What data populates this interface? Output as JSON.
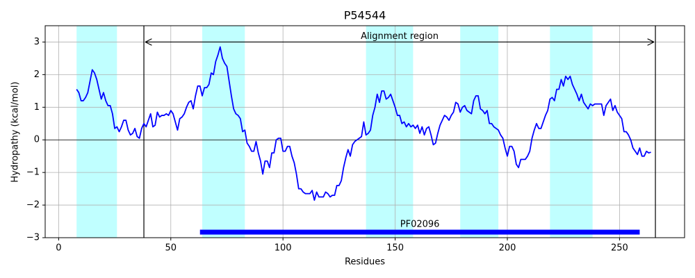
{
  "chart_data": {
    "type": "line",
    "title": "P54544",
    "x_label": "Residues",
    "y_label": "Hydropathy (kcal/mol)",
    "xlim": [
      -6,
      279
    ],
    "ylim": [
      -3,
      3.5
    ],
    "xticks": [
      0,
      50,
      100,
      150,
      200,
      250
    ],
    "yticks": [
      {
        "value": -3,
        "label": "−3"
      },
      {
        "value": -2,
        "label": "−2"
      },
      {
        "value": -1,
        "label": "−1"
      },
      0,
      1,
      2,
      3
    ],
    "grid": true,
    "zero_line": 0,
    "regions": [
      [
        8,
        26
      ],
      [
        64,
        83
      ],
      [
        137,
        158
      ],
      [
        179,
        196
      ],
      [
        219,
        238
      ]
    ],
    "region_color": "#c0ffff",
    "annotation": {
      "text": "Alignment region",
      "start": 38,
      "end": 266,
      "y": 3
    },
    "domain": {
      "name": "PF02096",
      "start": 63,
      "end": 259,
      "y": -2.83,
      "color": "#0000ff"
    },
    "x": [
      8,
      9,
      10,
      11,
      12,
      13,
      14,
      15,
      16,
      17,
      18,
      19,
      20,
      21,
      22,
      23,
      24,
      25,
      26,
      27,
      28,
      29,
      30,
      31,
      32,
      33,
      34,
      35,
      36,
      37,
      38,
      39,
      40,
      41,
      42,
      43,
      44,
      45,
      46,
      47,
      48,
      49,
      50,
      51,
      52,
      53,
      54,
      55,
      56,
      57,
      58,
      59,
      60,
      61,
      62,
      63,
      64,
      65,
      66,
      67,
      68,
      69,
      70,
      71,
      72,
      73,
      74,
      75,
      76,
      77,
      78,
      79,
      80,
      81,
      82,
      83,
      84,
      85,
      86,
      87,
      88,
      89,
      90,
      91,
      92,
      93,
      94,
      95,
      96,
      97,
      98,
      99,
      100,
      101,
      102,
      103,
      104,
      105,
      106,
      107,
      108,
      109,
      110,
      111,
      112,
      113,
      114,
      115,
      116,
      117,
      118,
      119,
      120,
      121,
      122,
      123,
      124,
      125,
      126,
      127,
      128,
      129,
      130,
      131,
      132,
      133,
      134,
      135,
      136,
      137,
      138,
      139,
      140,
      141,
      142,
      143,
      144,
      145,
      146,
      147,
      148,
      149,
      150,
      151,
      152,
      153,
      154,
      155,
      156,
      157,
      158,
      159,
      160,
      161,
      162,
      163,
      164,
      165,
      166,
      167,
      168,
      169,
      170,
      171,
      172,
      173,
      174,
      175,
      176,
      177,
      178,
      179,
      180,
      181,
      182,
      183,
      184,
      185,
      186,
      187,
      188,
      189,
      190,
      191,
      192,
      193,
      194,
      195,
      196,
      197,
      198,
      199,
      200,
      201,
      202,
      203,
      204,
      205,
      206,
      207,
      208,
      209,
      210,
      211,
      212,
      213,
      214,
      215,
      216,
      217,
      218,
      219,
      220,
      221,
      222,
      223,
      224,
      225,
      226,
      227,
      228,
      229,
      230,
      231,
      232,
      233,
      234,
      235,
      236,
      237,
      238,
      239,
      240,
      241,
      242,
      243,
      244,
      245,
      246,
      247,
      248,
      249,
      250,
      251,
      252,
      253,
      254,
      255,
      256,
      257,
      258,
      259,
      260,
      261,
      262,
      263,
      264
    ],
    "series": [
      {
        "name": "P54544",
        "color": "#0000ff",
        "values": [
          1.55,
          1.45,
          1.2,
          1.2,
          1.3,
          1.45,
          1.8,
          2.15,
          2.05,
          1.85,
          1.55,
          1.25,
          1.45,
          1.2,
          1.05,
          1.05,
          0.8,
          0.35,
          0.4,
          0.25,
          0.4,
          0.6,
          0.6,
          0.3,
          0.15,
          0.2,
          0.35,
          0.1,
          0.05,
          0.35,
          0.5,
          0.4,
          0.6,
          0.8,
          0.4,
          0.45,
          0.85,
          0.7,
          0.75,
          0.75,
          0.8,
          0.75,
          0.9,
          0.8,
          0.55,
          0.3,
          0.65,
          0.7,
          0.8,
          1.0,
          1.15,
          1.2,
          0.95,
          1.35,
          1.65,
          1.65,
          1.35,
          1.6,
          1.6,
          1.7,
          2.05,
          2.0,
          2.4,
          2.6,
          2.85,
          2.5,
          2.35,
          2.25,
          1.8,
          1.35,
          0.95,
          0.8,
          0.75,
          0.65,
          0.25,
          0.3,
          -0.1,
          -0.2,
          -0.35,
          -0.35,
          -0.05,
          -0.4,
          -0.65,
          -1.05,
          -0.65,
          -0.65,
          -0.85,
          -0.4,
          -0.4,
          0.0,
          0.05,
          0.05,
          -0.35,
          -0.35,
          -0.2,
          -0.2,
          -0.5,
          -0.7,
          -1.05,
          -1.5,
          -1.5,
          -1.6,
          -1.65,
          -1.65,
          -1.65,
          -1.55,
          -1.85,
          -1.6,
          -1.75,
          -1.75,
          -1.75,
          -1.6,
          -1.65,
          -1.75,
          -1.7,
          -1.7,
          -1.4,
          -1.4,
          -1.25,
          -0.85,
          -0.55,
          -0.3,
          -0.5,
          -0.15,
          -0.05,
          0.0,
          0.05,
          0.1,
          0.55,
          0.15,
          0.2,
          0.3,
          0.75,
          1.0,
          1.4,
          1.15,
          1.5,
          1.5,
          1.25,
          1.3,
          1.4,
          1.2,
          1.0,
          0.75,
          0.75,
          0.5,
          0.55,
          0.4,
          0.5,
          0.4,
          0.45,
          0.35,
          0.45,
          0.2,
          0.4,
          0.15,
          0.35,
          0.4,
          0.15,
          -0.15,
          -0.1,
          0.2,
          0.45,
          0.6,
          0.75,
          0.7,
          0.6,
          0.75,
          0.85,
          1.15,
          1.1,
          0.85,
          1.0,
          1.05,
          0.9,
          0.85,
          0.8,
          1.2,
          1.35,
          1.35,
          0.95,
          0.9,
          0.8,
          0.9,
          0.5,
          0.5,
          0.4,
          0.35,
          0.3,
          0.15,
          0.05,
          -0.25,
          -0.5,
          -0.2,
          -0.2,
          -0.35,
          -0.75,
          -0.85,
          -0.6,
          -0.6,
          -0.6,
          -0.5,
          -0.35,
          0.05,
          0.3,
          0.5,
          0.35,
          0.35,
          0.55,
          0.75,
          0.9,
          1.25,
          1.3,
          1.2,
          1.55,
          1.55,
          1.85,
          1.65,
          1.95,
          1.85,
          1.95,
          1.7,
          1.55,
          1.4,
          1.2,
          1.4,
          1.15,
          1.05,
          0.95,
          1.1,
          1.05,
          1.1,
          1.1,
          1.1,
          1.1,
          0.75,
          1.05,
          1.15,
          1.25,
          0.9,
          1.05,
          0.85,
          0.75,
          0.65,
          0.25,
          0.25,
          0.15,
          0.0,
          -0.25,
          -0.35,
          -0.45,
          -0.25,
          -0.5,
          -0.5,
          -0.35,
          -0.4,
          -0.38
        ]
      }
    ]
  }
}
